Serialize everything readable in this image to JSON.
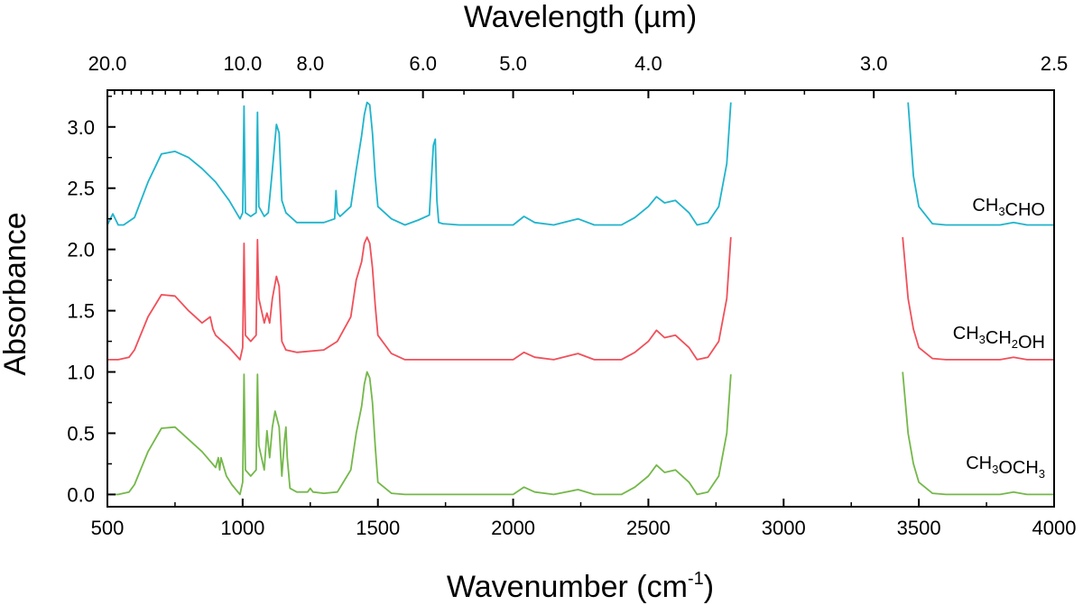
{
  "chart_data": {
    "type": "line",
    "top_axis_title_text": "Wavelength (",
    "top_axis_title_unit": "µm",
    "top_axis_title_close": ")",
    "xlabel_text": "Wavenumber (cm",
    "xlabel_sup": "-1",
    "xlabel_close": ")",
    "ylabel": "Absorbance",
    "xlim": [
      500,
      4000
    ],
    "ylim": [
      -0.1,
      3.3
    ],
    "x_ticks": [
      500,
      1000,
      1500,
      2000,
      2500,
      3000,
      3500,
      4000
    ],
    "x_tick_labels": [
      "500",
      "1000",
      "1500",
      "2000",
      "2500",
      "3000",
      "3500",
      "4000"
    ],
    "y_ticks": [
      0.0,
      0.5,
      1.0,
      1.5,
      2.0,
      2.5,
      3.0
    ],
    "y_tick_labels": [
      "0.0",
      "0.5",
      "1.0",
      "1.5",
      "2.0",
      "2.5",
      "3.0"
    ],
    "top_ticks_um": [
      20.0,
      10.0,
      8.0,
      6.0,
      5.0,
      4.0,
      3.0,
      2.5
    ],
    "top_tick_labels": [
      "20.0",
      "10.0",
      "8.0",
      "6.0",
      "5.0",
      "4.0",
      "3.0",
      "2.5"
    ],
    "gap_region": [
      2810,
      3440
    ],
    "series": [
      {
        "name": "CH3CHO",
        "label_parts": [
          [
            "CH",
            ""
          ],
          [
            "3",
            "sub"
          ],
          [
            "CHO",
            ""
          ]
        ],
        "color": "#1fb4cc",
        "x": [
          500,
          520,
          540,
          560,
          600,
          650,
          700,
          750,
          800,
          850,
          900,
          950,
          990,
          1000,
          1005,
          1010,
          1030,
          1050,
          1055,
          1060,
          1080,
          1095,
          1110,
          1125,
          1135,
          1145,
          1160,
          1200,
          1300,
          1340,
          1345,
          1350,
          1360,
          1400,
          1420,
          1440,
          1450,
          1460,
          1470,
          1480,
          1490,
          1500,
          1550,
          1600,
          1650,
          1690,
          1705,
          1712,
          1718,
          1725,
          1740,
          1800,
          1900,
          2000,
          2040,
          2080,
          2150,
          2240,
          2300,
          2400,
          2450,
          2500,
          2530,
          2560,
          2600,
          2650,
          2680,
          2720,
          2760,
          2790,
          2805,
          3460,
          3480,
          3500,
          3550,
          3600,
          3700,
          3800,
          3850,
          3900,
          4000
        ],
        "y": [
          2.2,
          2.29,
          2.2,
          2.2,
          2.26,
          2.55,
          2.78,
          2.8,
          2.75,
          2.66,
          2.55,
          2.4,
          2.25,
          2.3,
          3.17,
          2.3,
          2.27,
          2.3,
          3.12,
          2.35,
          2.27,
          2.3,
          2.65,
          3.02,
          2.95,
          2.4,
          2.3,
          2.22,
          2.22,
          2.25,
          2.48,
          2.3,
          2.27,
          2.35,
          2.65,
          2.93,
          3.1,
          3.2,
          3.18,
          2.95,
          2.6,
          2.35,
          2.25,
          2.2,
          2.24,
          2.28,
          2.85,
          2.9,
          2.4,
          2.22,
          2.21,
          2.2,
          2.2,
          2.2,
          2.27,
          2.22,
          2.2,
          2.25,
          2.2,
          2.2,
          2.26,
          2.35,
          2.43,
          2.38,
          2.4,
          2.3,
          2.2,
          2.22,
          2.35,
          2.7,
          3.2,
          3.2,
          2.6,
          2.35,
          2.21,
          2.2,
          2.2,
          2.2,
          2.22,
          2.2,
          2.2
        ]
      },
      {
        "name": "CH3CH2OH",
        "label_parts": [
          [
            "CH",
            ""
          ],
          [
            "3",
            "sub"
          ],
          [
            "CH",
            ""
          ],
          [
            "2",
            "sub"
          ],
          [
            "OH",
            ""
          ]
        ],
        "color": "#f0505a",
        "x": [
          500,
          540,
          580,
          600,
          650,
          700,
          750,
          800,
          850,
          880,
          890,
          900,
          950,
          990,
          1000,
          1005,
          1010,
          1030,
          1050,
          1055,
          1060,
          1080,
          1090,
          1100,
          1110,
          1125,
          1135,
          1145,
          1160,
          1200,
          1300,
          1350,
          1400,
          1420,
          1440,
          1450,
          1460,
          1470,
          1480,
          1490,
          1500,
          1550,
          1600,
          1700,
          1800,
          1900,
          2000,
          2040,
          2080,
          2150,
          2240,
          2300,
          2400,
          2450,
          2500,
          2530,
          2560,
          2600,
          2650,
          2680,
          2720,
          2760,
          2790,
          2805,
          3440,
          3460,
          3480,
          3500,
          3550,
          3600,
          3700,
          3800,
          3850,
          3900,
          4000
        ],
        "y": [
          1.1,
          1.1,
          1.12,
          1.18,
          1.45,
          1.63,
          1.62,
          1.5,
          1.4,
          1.45,
          1.35,
          1.3,
          1.2,
          1.1,
          1.2,
          2.05,
          1.3,
          1.25,
          1.3,
          2.08,
          1.6,
          1.4,
          1.48,
          1.4,
          1.6,
          1.78,
          1.7,
          1.25,
          1.18,
          1.16,
          1.18,
          1.25,
          1.45,
          1.75,
          1.9,
          2.05,
          2.1,
          2.05,
          1.85,
          1.55,
          1.3,
          1.15,
          1.1,
          1.1,
          1.1,
          1.1,
          1.1,
          1.16,
          1.12,
          1.1,
          1.15,
          1.1,
          1.1,
          1.16,
          1.25,
          1.34,
          1.28,
          1.3,
          1.2,
          1.1,
          1.12,
          1.25,
          1.6,
          2.1,
          2.1,
          1.6,
          1.35,
          1.2,
          1.11,
          1.1,
          1.1,
          1.1,
          1.12,
          1.1,
          1.1
        ]
      },
      {
        "name": "CH3OCH3",
        "label_parts": [
          [
            "CH",
            ""
          ],
          [
            "3",
            "sub"
          ],
          [
            "OCH",
            ""
          ],
          [
            "3",
            "sub"
          ]
        ],
        "color": "#74b84a",
        "x": [
          500,
          540,
          580,
          600,
          650,
          700,
          750,
          800,
          850,
          900,
          910,
          915,
          920,
          940,
          960,
          990,
          1000,
          1005,
          1010,
          1030,
          1050,
          1055,
          1060,
          1080,
          1090,
          1100,
          1110,
          1120,
          1135,
          1145,
          1155,
          1160,
          1165,
          1175,
          1200,
          1240,
          1250,
          1260,
          1300,
          1350,
          1400,
          1420,
          1440,
          1450,
          1460,
          1470,
          1480,
          1490,
          1500,
          1550,
          1600,
          1700,
          1800,
          1900,
          2000,
          2040,
          2080,
          2150,
          2240,
          2300,
          2400,
          2450,
          2500,
          2530,
          2560,
          2600,
          2650,
          2680,
          2720,
          2760,
          2790,
          2805,
          3440,
          3460,
          3480,
          3500,
          3550,
          3600,
          3700,
          3800,
          3850,
          3900,
          4000
        ],
        "y": [
          0.0,
          0.0,
          0.02,
          0.08,
          0.35,
          0.54,
          0.55,
          0.45,
          0.35,
          0.22,
          0.3,
          0.2,
          0.3,
          0.15,
          0.08,
          0.0,
          0.1,
          0.98,
          0.2,
          0.15,
          0.2,
          0.98,
          0.4,
          0.2,
          0.52,
          0.3,
          0.55,
          0.68,
          0.55,
          0.15,
          0.45,
          0.55,
          0.3,
          0.05,
          0.02,
          0.02,
          0.05,
          0.02,
          0.01,
          0.02,
          0.2,
          0.5,
          0.72,
          0.9,
          1.0,
          0.95,
          0.75,
          0.4,
          0.1,
          0.01,
          0.0,
          0.0,
          0.0,
          0.0,
          0.0,
          0.06,
          0.02,
          0.0,
          0.04,
          0.0,
          0.0,
          0.06,
          0.15,
          0.24,
          0.18,
          0.2,
          0.1,
          0.0,
          0.02,
          0.15,
          0.5,
          0.98,
          1.0,
          0.5,
          0.25,
          0.1,
          0.01,
          0.0,
          0.0,
          0.0,
          0.02,
          0.0,
          0.0
        ]
      }
    ]
  }
}
